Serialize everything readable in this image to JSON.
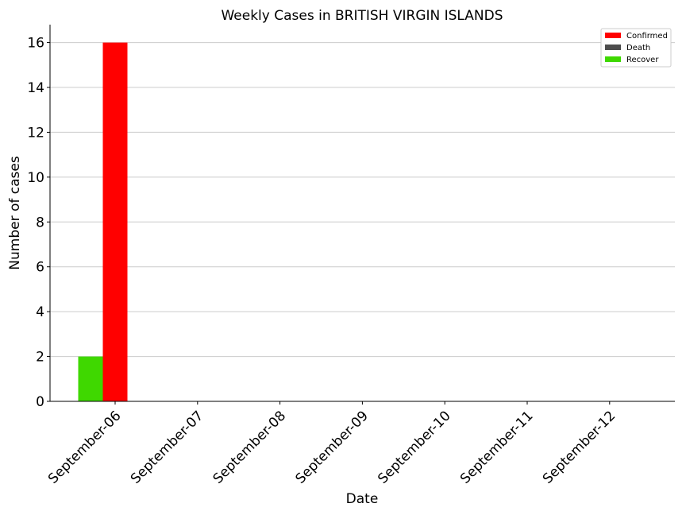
{
  "chart_data": {
    "type": "bar",
    "title": "Weekly Cases in BRITISH VIRGIN ISLANDS",
    "xlabel": "Date",
    "ylabel": "Number of cases",
    "categories": [
      "September-06",
      "September-07",
      "September-08",
      "September-09",
      "September-10",
      "September-11",
      "September-12"
    ],
    "series": [
      {
        "name": "Confirmed",
        "color": "#ff0000",
        "values": [
          16,
          0,
          0,
          0,
          0,
          0,
          0
        ]
      },
      {
        "name": "Death",
        "color": "#4d4d4d",
        "values": [
          0,
          0,
          0,
          0,
          0,
          0,
          0
        ]
      },
      {
        "name": "Recover",
        "color": "#3fd800",
        "values": [
          2,
          0,
          0,
          0,
          0,
          0,
          0
        ]
      }
    ],
    "ylim": [
      0,
      16.8
    ],
    "yticks": [
      0,
      2,
      4,
      6,
      8,
      10,
      12,
      14,
      16
    ],
    "grid": "horizontal",
    "legend_position": "top-right"
  }
}
